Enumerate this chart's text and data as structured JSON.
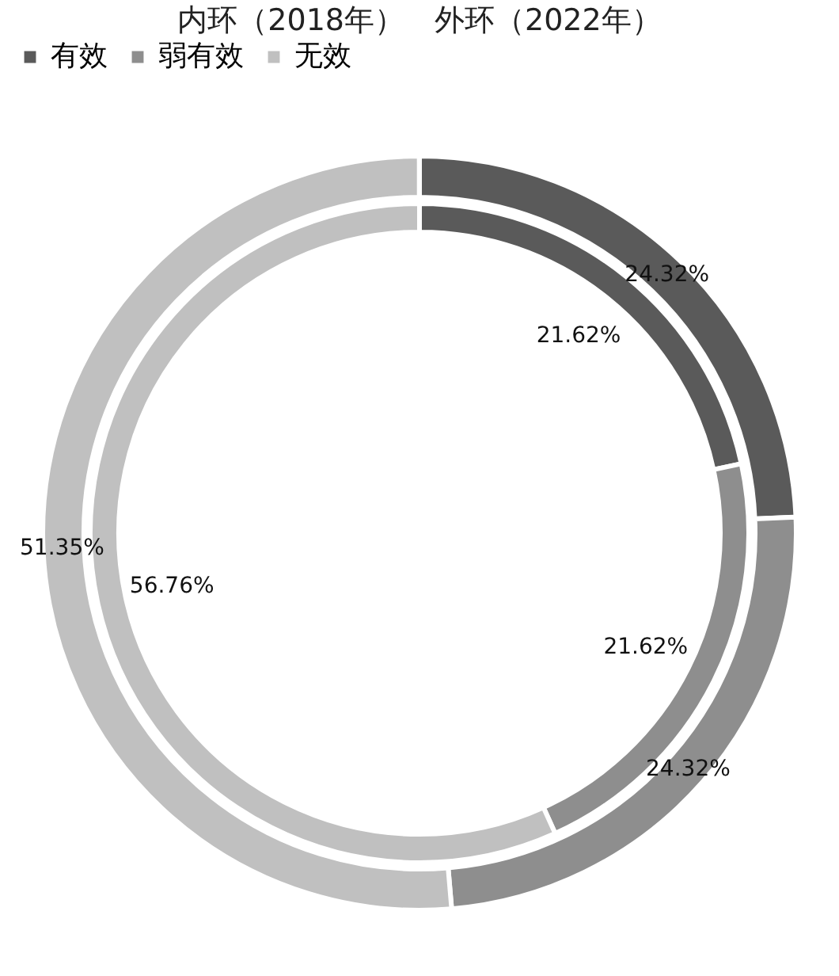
{
  "chart_data": {
    "type": "donut",
    "title": "内环（2018年）　外环（2022年）",
    "categories": [
      "有效",
      "弱有效",
      "无效"
    ],
    "colors": [
      "#5a5a5a",
      "#8e8e8e",
      "#c0c0c0"
    ],
    "legend": "top",
    "series": [
      {
        "values": [
          24.32,
          24.32,
          51.35
        ],
        "value_labels": [
          "24.32%",
          "24.32%",
          "51.35%"
        ]
      },
      {
        "values": [
          21.62,
          21.62,
          56.76
        ],
        "value_labels": [
          "21.62%",
          "21.62%",
          "56.76%"
        ]
      }
    ]
  }
}
